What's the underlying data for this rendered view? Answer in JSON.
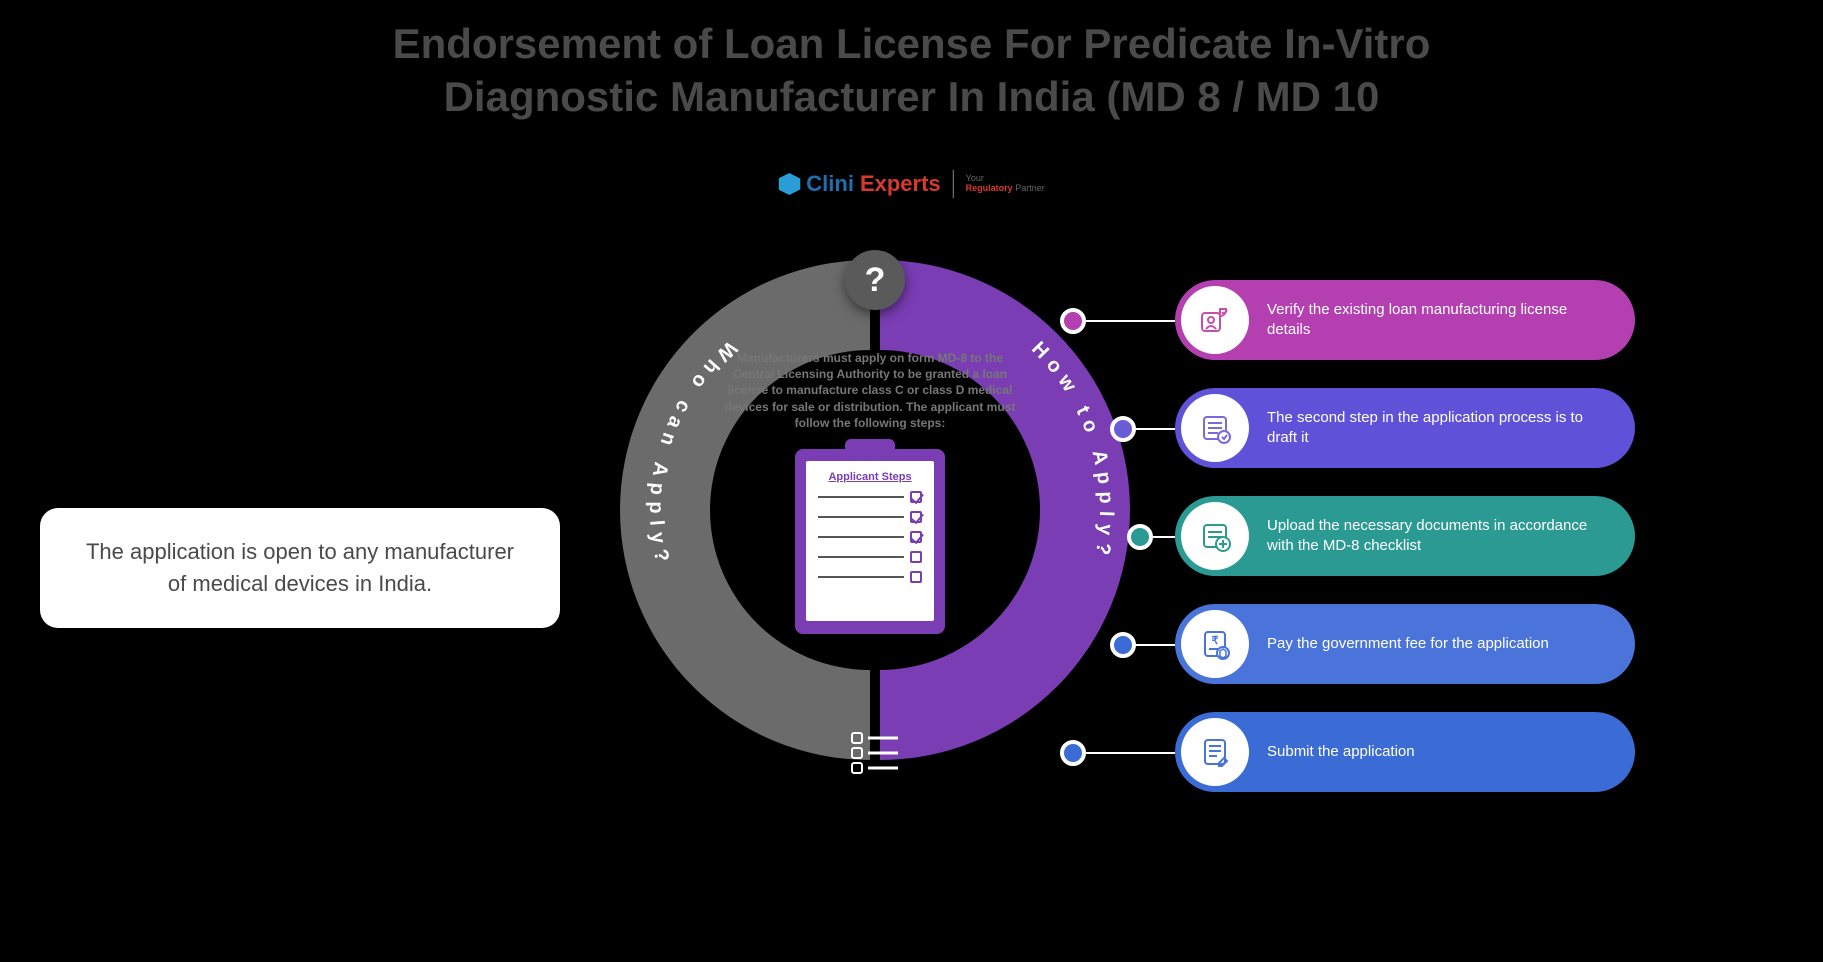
{
  "title": "Endorsement of Loan License For Predicate In-Vitro Diagnostic Manufacturer In India (MD 8 / MD 10",
  "logo": {
    "clini": "Clini",
    "experts": "Experts",
    "tag_line1": "Your",
    "tag_line2": "Regulatory",
    "tag_line3": "Partner"
  },
  "background_color": "#000000",
  "arcs": {
    "left": {
      "label": "Who can Apply?",
      "color": "#6b6b6b"
    },
    "right": {
      "label": "How to Apply?",
      "color": "#7a3db3"
    },
    "question_icon_color": "#5a5a5a"
  },
  "center": {
    "text": "Manufacturers must apply on form MD-8 to the Central Licensing Authority to be granted a loan license to manufacture class C or class D medical devices for sale or distribution. The applicant must follow the following steps:",
    "clipboard_title": "Applicant Steps",
    "clipboard_color": "#7a3db3",
    "rows": [
      {
        "checked": true
      },
      {
        "checked": true
      },
      {
        "checked": true
      },
      {
        "checked": false
      },
      {
        "checked": false
      }
    ]
  },
  "left_callout": {
    "text": "The application is open to any manufacturer of medical devices in India.",
    "background": "#ffffff",
    "text_color": "#4a4a4a"
  },
  "steps": [
    {
      "text": "Verify the existing loan manufacturing license details",
      "pill_color": "#b43fb0",
      "icon_color": "#c84fa8",
      "dot_color": "#b43fb0"
    },
    {
      "text": "The second step in the application process is to draft it",
      "pill_color": "#5f52d8",
      "icon_color": "#7a6ae0",
      "dot_color": "#6a5bd6"
    },
    {
      "text": "Upload the necessary documents in accordance with the MD-8 checklist",
      "pill_color": "#2a9a93",
      "icon_color": "#2a9a93",
      "dot_color": "#2a9a93"
    },
    {
      "text": "Pay the government fee for the application",
      "pill_color": "#4a74d9",
      "icon_color": "#4a74d9",
      "dot_color": "#3b6bd4"
    },
    {
      "text": "Submit the application",
      "pill_color": "#3b6bd4",
      "icon_color": "#4a74d9",
      "dot_color": "#3b6bd4"
    }
  ],
  "typography": {
    "title_fontsize": 42,
    "title_color": "#4a4a4a",
    "callout_fontsize": 22,
    "step_fontsize": 15,
    "center_text_fontsize": 12
  }
}
